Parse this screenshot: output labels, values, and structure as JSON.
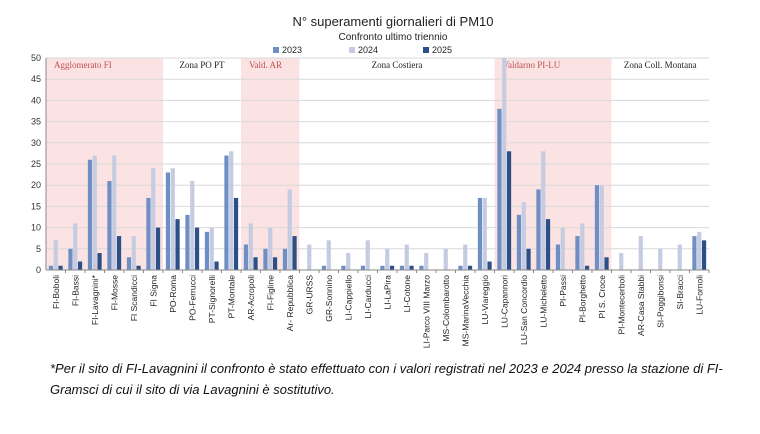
{
  "chart_data": {
    "type": "bar",
    "title": "N° superamenti giornalieri di PM10",
    "subtitle": "Confronto ultimo triennio",
    "xlabel": "",
    "ylabel": "",
    "ylim": [
      0,
      50
    ],
    "yticks": [
      0,
      5,
      10,
      15,
      20,
      25,
      30,
      35,
      40,
      45,
      50
    ],
    "grid": true,
    "legend_position": "top",
    "categories": [
      "FI-Boboli",
      "FI-Bassi",
      "FI-Lavagnini*",
      "FI-Mosse",
      "FI Scandicci",
      "FI Signa",
      "PO-Roma",
      "PO-Ferrucci",
      "PT-Signorelli",
      "PT-Montale",
      "AR-Acropoli",
      "FI-Figline",
      "Ar- Repubblica",
      "GR-URSS",
      "GR-Sonnino",
      "LI-Cappiello",
      "LI-Carducci",
      "LI-LaPira",
      "LI-Cotone",
      "LI-Parco VIII Marzo",
      "MS-Colombarotto",
      "MS-MarinaVecchia",
      "LU-Viareggio",
      "LU-Capannori",
      "LU-San Concordio",
      "LU-Micheletto",
      "PI-Passi",
      "PI-Borghetto",
      "PI S. Croce",
      "PI-Montecerboli",
      "AR-Casa Stabbi",
      "SI-Poggibonsi",
      "SI-Bracci",
      "LU-Fornoli"
    ],
    "series": [
      {
        "name": "2023",
        "color": "#6f8fc4",
        "values": [
          1,
          5,
          26,
          21,
          3,
          17,
          23,
          13,
          9,
          27,
          6,
          5,
          5,
          0,
          1,
          1,
          1,
          1,
          1,
          1,
          0,
          1,
          17,
          38,
          13,
          19,
          6,
          8,
          20,
          0,
          0,
          0,
          0,
          8
        ]
      },
      {
        "name": "2024",
        "color": "#c5cce2",
        "values": [
          7,
          11,
          27,
          27,
          8,
          24,
          24,
          21,
          10,
          28,
          11,
          10,
          19,
          6,
          7,
          4,
          7,
          5,
          6,
          4,
          5,
          6,
          17,
          50,
          16,
          28,
          10,
          11,
          20,
          4,
          8,
          5,
          6,
          9
        ]
      },
      {
        "name": "2025",
        "color": "#2b4f86",
        "values": [
          1,
          2,
          4,
          8,
          1,
          10,
          12,
          10,
          2,
          17,
          3,
          3,
          8,
          0,
          0,
          0,
          0,
          1,
          1,
          0,
          0,
          1,
          2,
          28,
          5,
          12,
          0,
          1,
          3,
          0,
          0,
          0,
          0,
          7
        ]
      }
    ],
    "zones": [
      {
        "label": "Agglomerato FI",
        "from": 0,
        "to": 5,
        "shaded": true
      },
      {
        "label": "Zona PO PT",
        "from": 6,
        "to": 9,
        "shaded": false
      },
      {
        "label": "Vald. AR",
        "from": 10,
        "to": 12,
        "shaded": true
      },
      {
        "label": "Zona Costiera",
        "from": 13,
        "to": 22,
        "shaded": false
      },
      {
        "label": "Valdarno PI-LU",
        "from": 23,
        "to": 28,
        "shaded": true
      },
      {
        "label": "Zona Coll. Montana",
        "from": 29,
        "to": 33,
        "shaded": false
      }
    ],
    "colors": {
      "zone_shade": "#fbe3e3",
      "zone_text_shaded": "#c05050",
      "zone_text_plain": "#222222",
      "grid": "#d9d9d9",
      "axis": "#888888"
    }
  },
  "note": "*Per il sito di FI-Lavagnini il confronto è stato effettuato con i valori registrati nel 2023 e 2024 presso la stazione di FI-Gramsci di cui il sito di via Lavagnini è sostitutivo."
}
